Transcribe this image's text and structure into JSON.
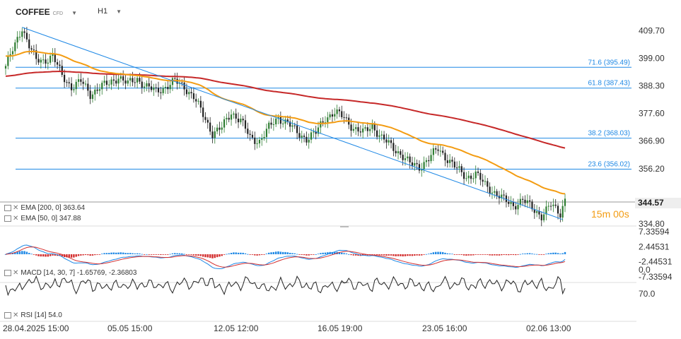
{
  "header": {
    "symbol": "COFFEE",
    "symbol_tag": "CFD",
    "timeframe": "H1"
  },
  "price_tag": "344.57",
  "timer": "15m 00s",
  "indicators": {
    "ema200": "EMA [200, 0] 363.64",
    "ema50": "EMA [50, 0] 347.88",
    "macd": "MACD [14, 30, 7] -1.65769, -2.36803",
    "rsi": "RSI [14] 54.0"
  },
  "colors": {
    "bull": "#2e7d32",
    "bear": "#222222",
    "ema50": "#f39c12",
    "ema200": "#c62828",
    "fib": "#1e88e5",
    "trend": "#1e88e5",
    "macd_pos": "#1e88e5",
    "macd_neg": "#d32f2f"
  },
  "chart_data": [
    {
      "type": "candlestick",
      "title": "COFFEE H1",
      "x_labels": [
        "28.04.2025 15:00",
        "05.05 15:00",
        "12.05 12:00",
        "16.05 19:00",
        "23.05 16:00",
        "02.06 13:00"
      ],
      "y_ticks": [
        409.7,
        399.0,
        388.3,
        377.6,
        366.9,
        356.2,
        334.8
      ],
      "ylim": [
        334.8,
        415.0
      ],
      "fibonacci": [
        {
          "label": "71.6 (395.49)",
          "value": 395.49
        },
        {
          "label": "61.8 (387.43)",
          "value": 387.43
        },
        {
          "label": "38.2 (368.03)",
          "value": 368.03
        },
        {
          "label": "23.6 (356.02)",
          "value": 356.02
        }
      ],
      "last_price": 344.57,
      "close_anchors": [
        [
          0,
          396
        ],
        [
          4,
          404
        ],
        [
          7,
          411
        ],
        [
          10,
          404
        ],
        [
          13,
          398
        ],
        [
          16,
          398
        ],
        [
          20,
          400
        ],
        [
          24,
          392
        ],
        [
          28,
          388
        ],
        [
          32,
          390
        ],
        [
          36,
          385
        ],
        [
          40,
          388
        ],
        [
          44,
          389
        ],
        [
          48,
          392
        ],
        [
          52,
          389
        ],
        [
          56,
          391
        ],
        [
          60,
          388
        ],
        [
          64,
          386
        ],
        [
          68,
          388
        ],
        [
          72,
          390
        ],
        [
          76,
          388
        ],
        [
          80,
          384
        ],
        [
          84,
          377
        ],
        [
          88,
          370
        ],
        [
          92,
          372
        ],
        [
          96,
          378
        ],
        [
          100,
          375
        ],
        [
          104,
          368
        ],
        [
          108,
          367
        ],
        [
          112,
          372
        ],
        [
          116,
          376
        ],
        [
          120,
          374
        ],
        [
          124,
          370
        ],
        [
          128,
          368
        ],
        [
          132,
          370
        ],
        [
          136,
          376
        ],
        [
          140,
          378
        ],
        [
          144,
          376
        ],
        [
          148,
          372
        ],
        [
          152,
          370
        ],
        [
          156,
          373
        ],
        [
          160,
          368
        ],
        [
          164,
          365
        ],
        [
          168,
          362
        ],
        [
          172,
          358
        ],
        [
          176,
          357
        ],
        [
          180,
          360
        ],
        [
          184,
          364
        ],
        [
          188,
          360
        ],
        [
          192,
          356
        ],
        [
          196,
          353
        ],
        [
          200,
          354
        ],
        [
          204,
          350
        ],
        [
          208,
          347
        ],
        [
          212,
          344
        ],
        [
          216,
          342
        ],
        [
          220,
          344
        ],
        [
          224,
          341
        ],
        [
          228,
          338
        ],
        [
          232,
          342
        ],
        [
          236,
          339
        ],
        [
          238,
          344.57
        ]
      ]
    },
    {
      "type": "macd",
      "title": "MACD [14, 30, 7]",
      "y_ticks": [
        7.33594,
        2.44531,
        -2.44531,
        -7.33594
      ],
      "ylim": [
        -7.33594,
        7.33594
      ],
      "values": {
        "macd": -1.65769,
        "signal": -2.36803
      }
    },
    {
      "type": "rsi",
      "title": "RSI [14]",
      "y_ticks": [
        70.0,
        0.0
      ],
      "value": 54.0
    }
  ]
}
